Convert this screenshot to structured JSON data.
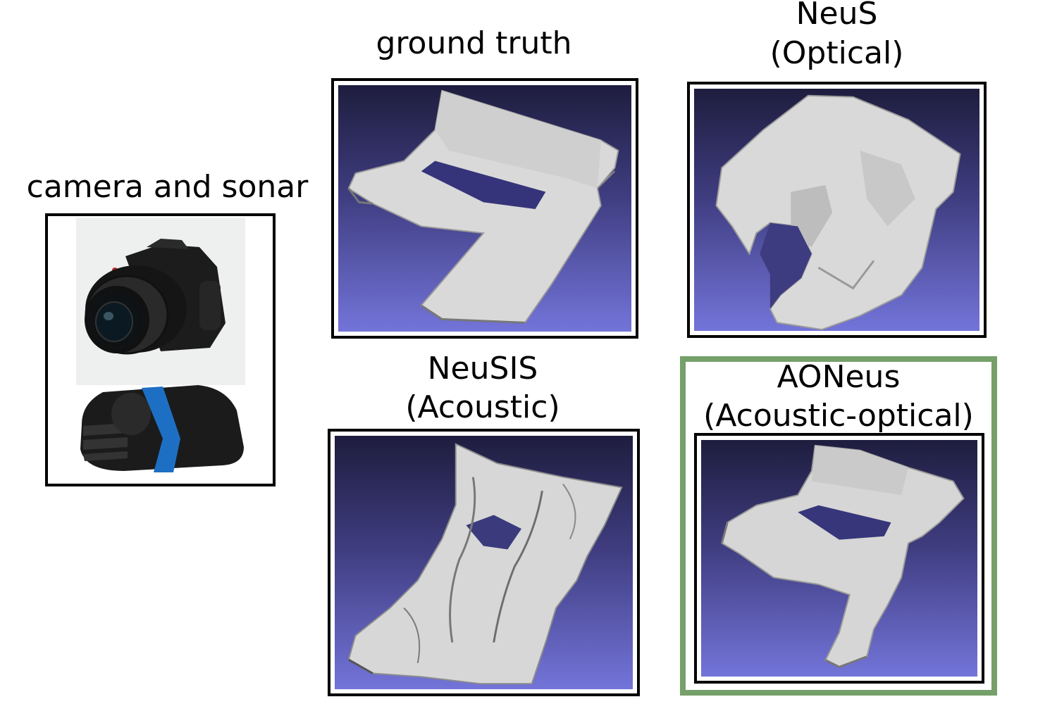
{
  "panels": {
    "input": {
      "label": "camera and sonar",
      "camera_icon": "camera-icon",
      "sonar_icon": "sonar-icon"
    },
    "ground_truth": {
      "label": "ground truth"
    },
    "neus": {
      "label_line1": "NeuS",
      "label_line2": "(Optical)"
    },
    "neusis": {
      "label_line1": "NeuSIS",
      "label_line2": "(Acoustic)"
    },
    "aoneus": {
      "label_line1": "AONeus",
      "label_line2": "(Acoustic-optical)",
      "highlight_color": "#76a06a"
    }
  },
  "colors": {
    "viewport_top": "#1e1d3e",
    "viewport_bottom": "#7374d9",
    "mesh": "#d9d9d9"
  }
}
